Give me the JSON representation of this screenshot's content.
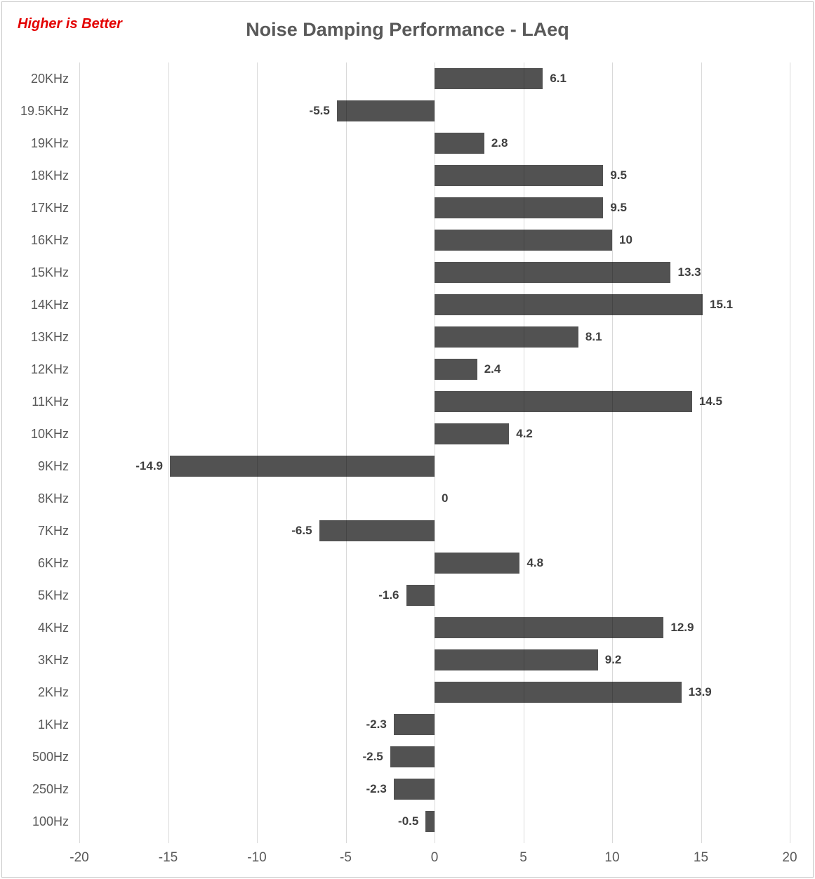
{
  "chart": {
    "note_color": "#e30000",
    "title_color": "#595959"
  },
  "chart_data": {
    "type": "bar",
    "orientation": "horizontal",
    "title": "Noise Damping Performance - LAeq",
    "annotation": "Higher is Better",
    "categories": [
      "20KHz",
      "19.5KHz",
      "19KHz",
      "18KHz",
      "17KHz",
      "16KHz",
      "15KHz",
      "14KHz",
      "13KHz",
      "12KHz",
      "11KHz",
      "10KHz",
      "9KHz",
      "8KHz",
      "7KHz",
      "6KHz",
      "5KHz",
      "4KHz",
      "3KHz",
      "2KHz",
      "1KHz",
      "500Hz",
      "250Hz",
      "100Hz"
    ],
    "values": [
      6.1,
      -5.5,
      2.8,
      9.5,
      9.5,
      10,
      13.3,
      15.1,
      8.1,
      2.4,
      14.5,
      4.2,
      -14.9,
      0,
      -6.5,
      4.8,
      -1.6,
      12.9,
      9.2,
      13.9,
      -2.3,
      -2.5,
      -2.3,
      -0.5
    ],
    "xlim": [
      -20,
      20
    ],
    "xticks": [
      -20,
      -15,
      -10,
      -5,
      0,
      5,
      10,
      15,
      20
    ],
    "grid": true,
    "legend": false,
    "bar_color": "#525252",
    "gridline_color": "#d9d9d9",
    "data_label_color": "#3f3f3f",
    "axis_text_color": "#595959"
  }
}
